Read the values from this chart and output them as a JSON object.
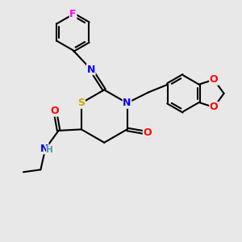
{
  "bg_color": "#e8e8e8",
  "atom_colors": {
    "C": "#000000",
    "N": "#0000ff",
    "O": "#ff0000",
    "S": "#ccaa00",
    "F": "#ff00ff",
    "H": "#4a9a9a"
  },
  "bond_color": "#000000",
  "line_width": 1.5,
  "figsize": [
    3.0,
    3.0
  ],
  "dpi": 100,
  "xlim": [
    0,
    10
  ],
  "ylim": [
    0,
    10
  ]
}
